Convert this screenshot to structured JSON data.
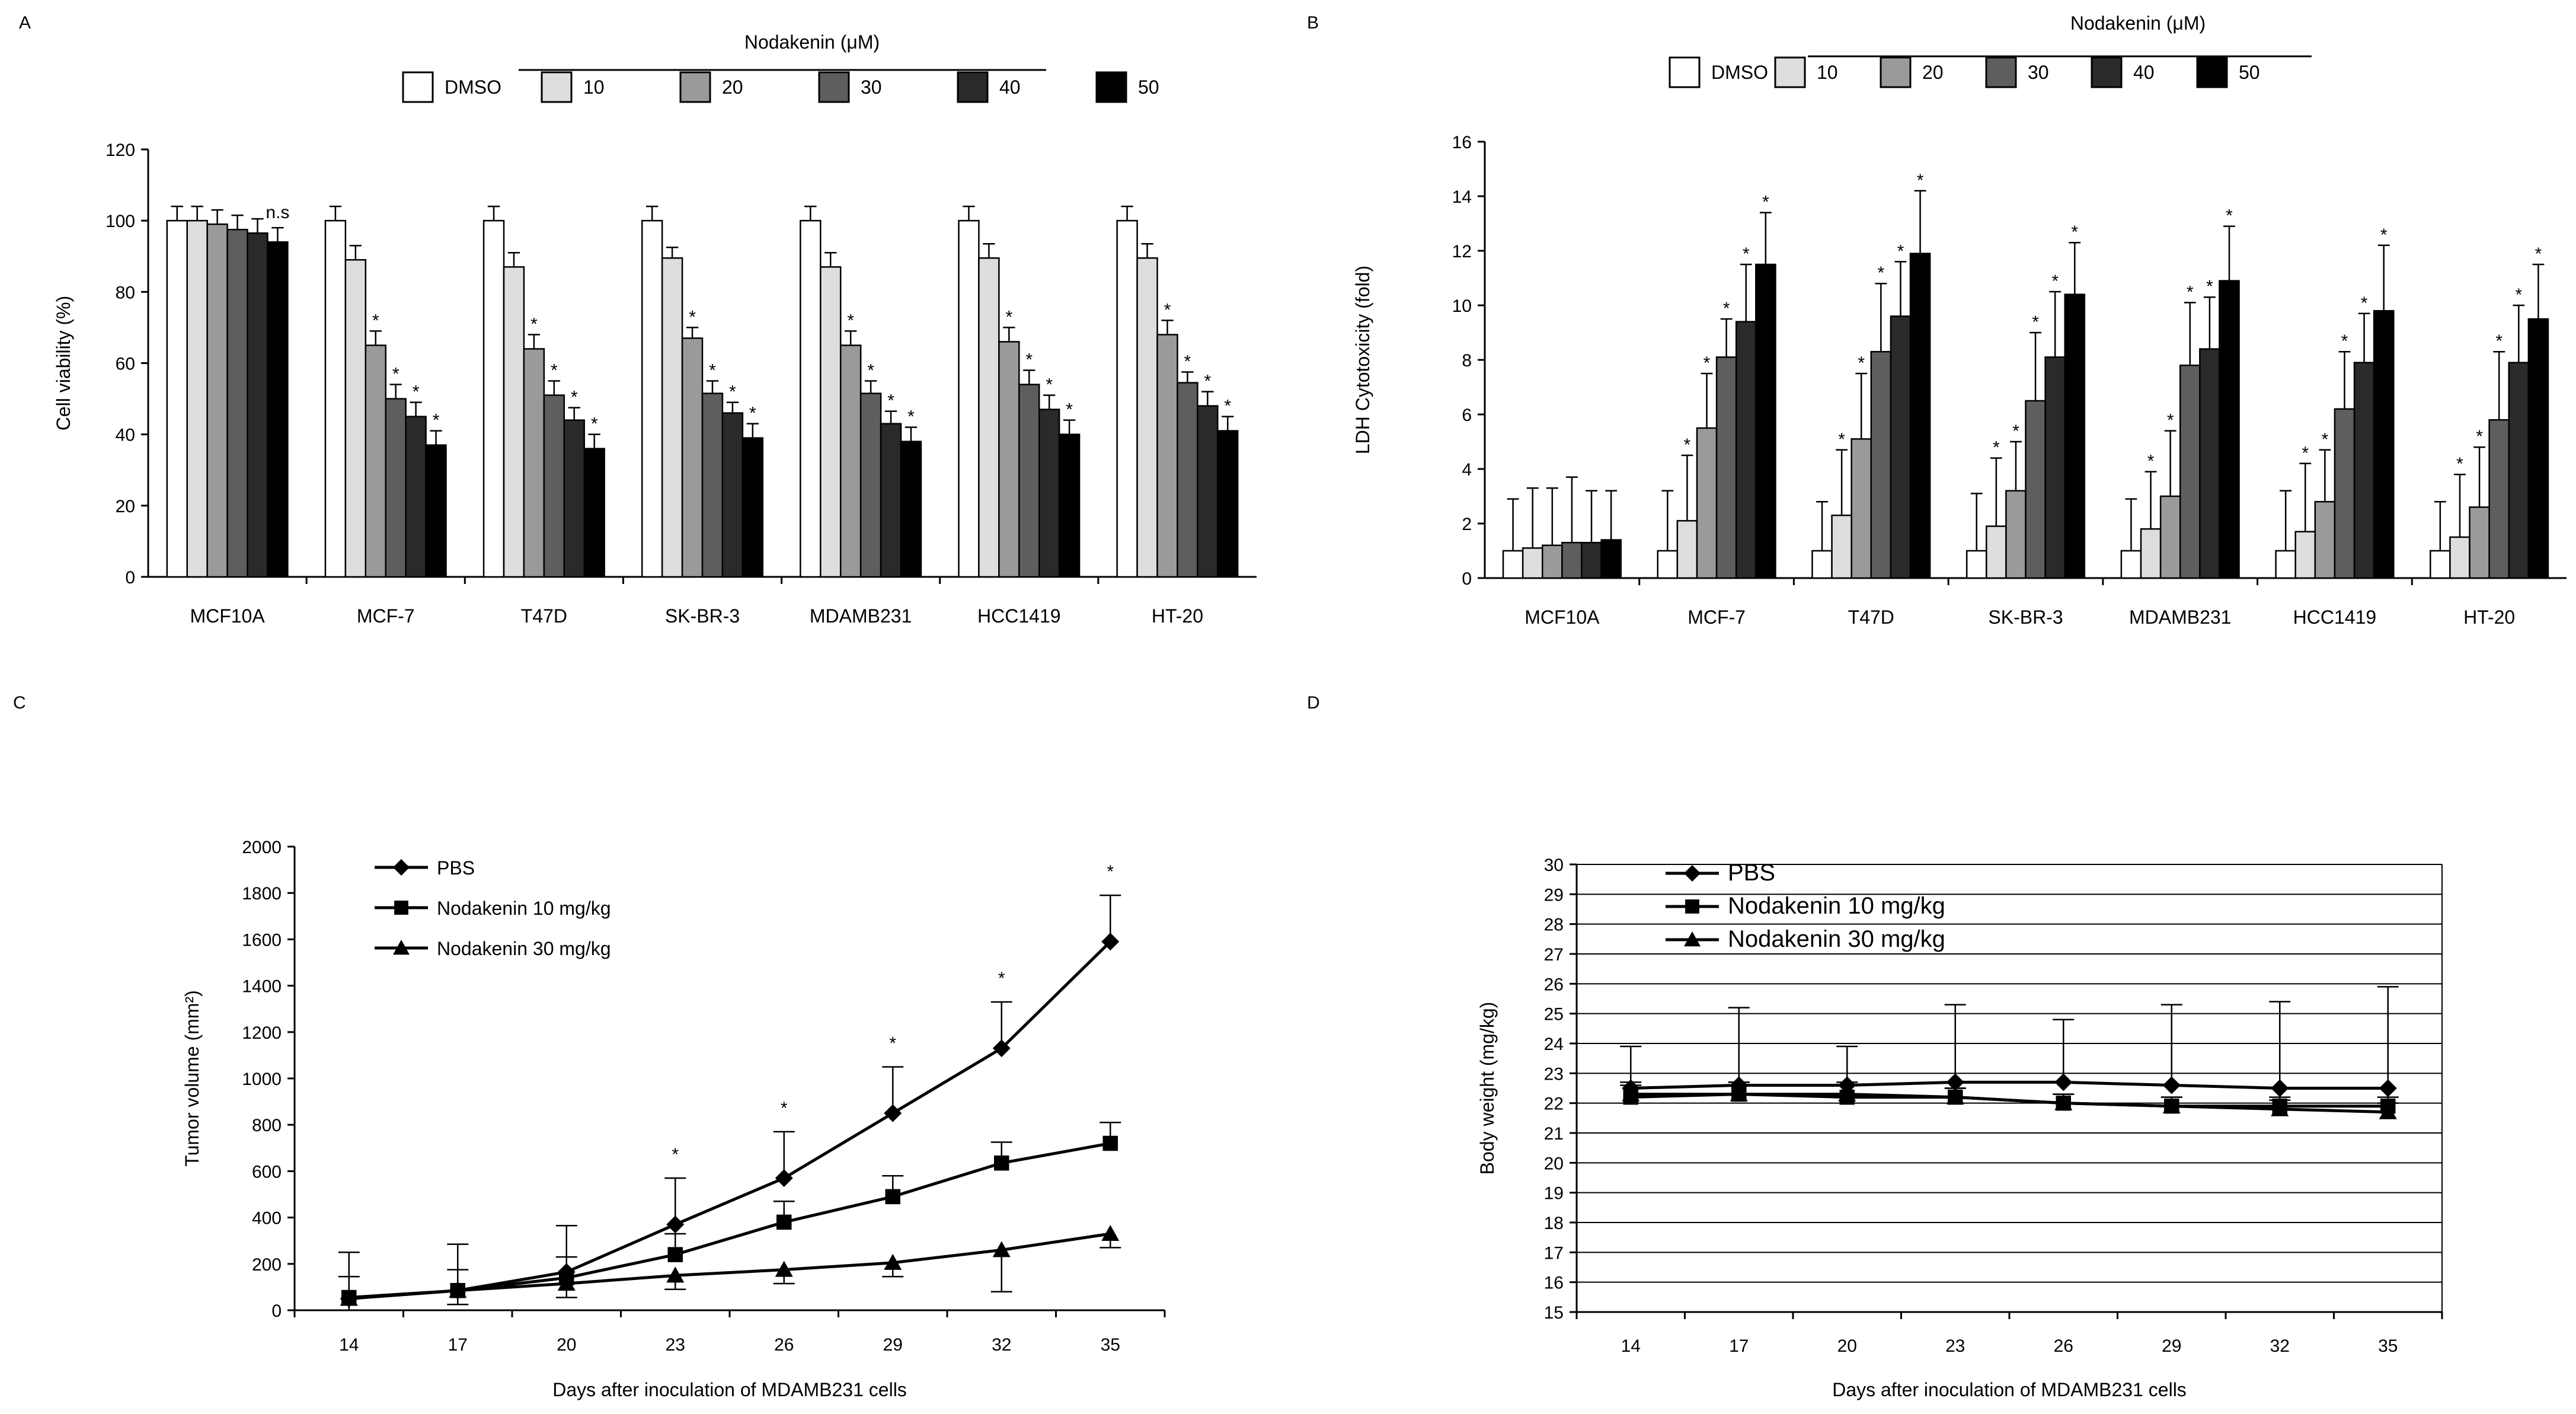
{
  "colors": {
    "DMSO": "#ffffff",
    "10": "#dedede",
    "20": "#9a9a9a",
    "30": "#5e5e5e",
    "40": "#2a2a2a",
    "50": "#000000",
    "axis": "#000000"
  },
  "chart_data": [
    {
      "panel": "A",
      "type": "bar",
      "title": "",
      "header": "Nodakenin (μM)",
      "legend": [
        "DMSO",
        "10",
        "20",
        "30",
        "40",
        "50"
      ],
      "categories": [
        "MCF10A",
        "MCF-7",
        "T47D",
        "SK-BR-3",
        "MDAMB231",
        "HCC1419",
        "HT-20"
      ],
      "xlabel": "",
      "ylabel": "Cell viability (%)",
      "ylim": [
        0,
        120
      ],
      "yticks": [
        "0",
        "20",
        "40",
        "60",
        "80",
        "100",
        "120"
      ],
      "series": [
        {
          "name": "DMSO",
          "values": [
            100,
            100,
            100,
            100,
            100,
            100,
            100
          ],
          "err": [
            4,
            4,
            4,
            4,
            4,
            4,
            4
          ]
        },
        {
          "name": "10",
          "values": [
            100,
            89,
            87,
            89.5,
            87,
            89.5,
            89.5
          ],
          "err": [
            4,
            4,
            4,
            3,
            4,
            4,
            4
          ]
        },
        {
          "name": "20",
          "values": [
            99,
            65,
            64,
            67,
            65,
            66,
            68
          ],
          "err": [
            4,
            4,
            4,
            3,
            4,
            4,
            4
          ]
        },
        {
          "name": "30",
          "values": [
            97.5,
            50,
            51,
            51.5,
            51.5,
            54,
            54.5
          ],
          "err": [
            4,
            4,
            4,
            3.5,
            3.5,
            4,
            3
          ]
        },
        {
          "name": "40",
          "values": [
            96.5,
            45,
            44,
            46,
            43,
            47,
            48
          ],
          "err": [
            4,
            4,
            3.5,
            3,
            3.5,
            4,
            4
          ]
        },
        {
          "name": "50",
          "values": [
            94,
            37,
            36,
            39,
            38,
            40,
            41
          ],
          "err": [
            4,
            4,
            4,
            4,
            4,
            4,
            4
          ]
        }
      ],
      "annotations": [
        {
          "text": "n.s",
          "category": "MCF10A",
          "series": "50"
        },
        {
          "text": "*",
          "rule": "series 20, 30, 40 and 50 for every category except MCF10A"
        }
      ]
    },
    {
      "panel": "B",
      "type": "bar",
      "title": "",
      "header": "Nodakenin (μM)",
      "legend": [
        "DMSO",
        "10",
        "20",
        "30",
        "40",
        "50"
      ],
      "categories": [
        "MCF10A",
        "MCF-7",
        "T47D",
        "SK-BR-3",
        "MDAMB231",
        "HCC1419",
        "HT-20"
      ],
      "xlabel": "",
      "ylabel": "LDH Cytotoxicity (fold)",
      "ylim": [
        0,
        16
      ],
      "yticks": [
        "0",
        "2",
        "4",
        "6",
        "8",
        "10",
        "12",
        "14",
        "16"
      ],
      "series": [
        {
          "name": "DMSO",
          "values": [
            1,
            1,
            1,
            1,
            1,
            1,
            1
          ],
          "err": [
            1.9,
            2.2,
            1.8,
            2.1,
            1.9,
            2.2,
            1.8
          ]
        },
        {
          "name": "10",
          "values": [
            1.1,
            2.1,
            2.3,
            1.9,
            1.8,
            1.7,
            1.5
          ],
          "err": [
            2.2,
            2.4,
            2.4,
            2.5,
            2.1,
            2.5,
            2.3
          ]
        },
        {
          "name": "20",
          "values": [
            1.2,
            5.5,
            5.1,
            3.2,
            3.0,
            2.8,
            2.6
          ],
          "err": [
            2.1,
            2.0,
            2.4,
            1.8,
            2.4,
            1.9,
            2.2
          ]
        },
        {
          "name": "30",
          "values": [
            1.3,
            8.1,
            8.3,
            6.5,
            7.8,
            6.2,
            5.8
          ],
          "err": [
            2.4,
            1.4,
            2.5,
            2.5,
            2.3,
            2.1,
            2.5
          ]
        },
        {
          "name": "40",
          "values": [
            1.3,
            9.4,
            9.6,
            8.1,
            8.4,
            7.9,
            7.9
          ],
          "err": [
            1.9,
            2.1,
            2.0,
            2.4,
            1.9,
            1.8,
            2.1
          ]
        },
        {
          "name": "50",
          "values": [
            1.4,
            11.5,
            11.9,
            10.4,
            10.9,
            9.8,
            9.5
          ],
          "err": [
            1.8,
            1.9,
            2.3,
            1.9,
            2.0,
            2.4,
            2.0
          ]
        }
      ],
      "annotations": [
        {
          "text": "*",
          "rule": "series 10, 20, 30, 40 and 50 for every category except MCF10A"
        }
      ]
    },
    {
      "panel": "C",
      "type": "line",
      "title": "",
      "xlabel": "Days after inoculation of MDAMB231  cells",
      "ylabel": "Tumor volume (mm²)",
      "ylim": [
        0,
        2000
      ],
      "yticks": [
        "0",
        "200",
        "400",
        "600",
        "800",
        "1000",
        "1200",
        "1400",
        "1600",
        "1800",
        "2000"
      ],
      "x": [
        14,
        17,
        20,
        23,
        26,
        29,
        32,
        35
      ],
      "xticks": [
        "14",
        "17",
        "20",
        "23",
        "26",
        "29",
        "32",
        "35"
      ],
      "legend_position": "top-left",
      "series": [
        {
          "name": "PBS",
          "marker": "diamond",
          "values": [
            50,
            85,
            165,
            370,
            570,
            850,
            1130,
            1590
          ],
          "err": [
            200,
            200,
            200,
            200,
            200,
            200,
            200,
            200
          ]
        },
        {
          "name": "Nodakenin 10 mg/kg",
          "marker": "square",
          "values": [
            55,
            85,
            140,
            240,
            380,
            490,
            635,
            720
          ],
          "err": [
            90,
            90,
            90,
            90,
            90,
            90,
            90,
            90
          ]
        },
        {
          "name": "Nodakenin 30 mg/kg",
          "marker": "triangle",
          "values": [
            50,
            85,
            115,
            150,
            175,
            205,
            260,
            330
          ],
          "err": [
            60,
            60,
            60,
            60,
            60,
            60,
            180,
            60
          ]
        }
      ],
      "annotations": [
        {
          "text": "*",
          "x": [
            23,
            26,
            29,
            32,
            35
          ]
        }
      ]
    },
    {
      "panel": "D",
      "type": "line",
      "title": "",
      "xlabel": "Days after inoculation of MDAMB231  cells",
      "ylabel": "Body weight (mg/kg)",
      "ylim": [
        15,
        30
      ],
      "yticks": [
        "15",
        "16",
        "17",
        "18",
        "19",
        "20",
        "21",
        "22",
        "23",
        "24",
        "25",
        "26",
        "27",
        "28",
        "29",
        "30"
      ],
      "x": [
        14,
        17,
        20,
        23,
        26,
        29,
        32,
        35
      ],
      "xticks": [
        "14",
        "17",
        "20",
        "23",
        "26",
        "29",
        "32",
        "35"
      ],
      "grid": true,
      "legend_position": "top-left",
      "series": [
        {
          "name": "PBS",
          "marker": "diamond",
          "values": [
            22.5,
            22.6,
            22.6,
            22.7,
            22.7,
            22.6,
            22.5,
            22.5
          ],
          "err": [
            1.4,
            2.6,
            1.3,
            2.6,
            2.1,
            2.7,
            2.9,
            3.4
          ]
        },
        {
          "name": "Nodakenin 10 mg/kg",
          "marker": "square",
          "values": [
            22.2,
            22.3,
            22.2,
            22.2,
            22.0,
            21.9,
            21.9,
            21.9
          ],
          "err": [
            0.4,
            0.4,
            0.4,
            0.3,
            0.3,
            0.3,
            0.3,
            0.3
          ]
        },
        {
          "name": "Nodakenin 30 mg/kg",
          "marker": "triangle",
          "values": [
            22.3,
            22.3,
            22.3,
            22.2,
            22.0,
            21.9,
            21.8,
            21.7
          ],
          "err": [
            0.4,
            0.4,
            0.4,
            0.3,
            0.3,
            0.3,
            0.3,
            0.3
          ]
        }
      ]
    }
  ]
}
